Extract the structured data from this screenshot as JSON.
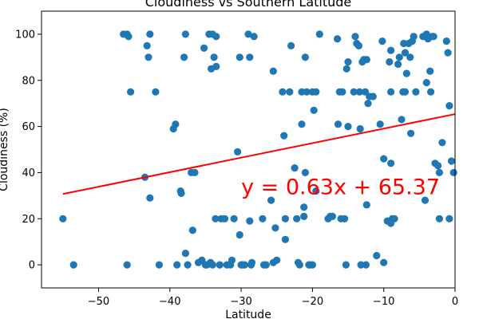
{
  "chart_data": {
    "type": "scatter",
    "title": "Cloudiness vs Southern Latitude",
    "xlabel": "Latitude",
    "ylabel": "Cloudiness (%)",
    "xlim": [
      -58,
      0
    ],
    "ylim": [
      -10,
      110
    ],
    "xticks": [
      -50,
      -40,
      -30,
      -20,
      -10,
      0
    ],
    "yticks": [
      0,
      20,
      40,
      60,
      80,
      100
    ],
    "grid": false,
    "point_color": "#1f77b4",
    "line_color": "#ff0000",
    "equation_color": "#ff0000",
    "regression": {
      "slope": 0.63,
      "intercept": 65.37,
      "x_range": [
        -55,
        0
      ]
    },
    "annotation": "y = 0.63x + 65.37",
    "points": [
      [
        -55,
        20
      ],
      [
        -53.5,
        0
      ],
      [
        -46.5,
        100
      ],
      [
        -46,
        100
      ],
      [
        -45.8,
        99
      ],
      [
        -46,
        0
      ],
      [
        -45.5,
        75
      ],
      [
        -43.5,
        38
      ],
      [
        -43.2,
        95
      ],
      [
        -43,
        90
      ],
      [
        -42.8,
        29
      ],
      [
        -42.8,
        100
      ],
      [
        -42,
        75
      ],
      [
        -41.5,
        0
      ],
      [
        -39.5,
        59
      ],
      [
        -39.2,
        61
      ],
      [
        -39,
        0
      ],
      [
        -38.5,
        32
      ],
      [
        -38.4,
        31
      ],
      [
        -38,
        90
      ],
      [
        -37.8,
        100
      ],
      [
        -37.8,
        5
      ],
      [
        -37.5,
        0
      ],
      [
        -37,
        40
      ],
      [
        -36.8,
        15
      ],
      [
        -36.5,
        40
      ],
      [
        -36,
        1
      ],
      [
        -35.5,
        2
      ],
      [
        -35.2,
        94
      ],
      [
        -35,
        0
      ],
      [
        -34.8,
        0
      ],
      [
        -34.5,
        100
      ],
      [
        -34.3,
        1
      ],
      [
        -34.2,
        85
      ],
      [
        -34,
        100
      ],
      [
        -34,
        0
      ],
      [
        -33.8,
        90
      ],
      [
        -33.6,
        20
      ],
      [
        -33.5,
        86
      ],
      [
        -33.5,
        99
      ],
      [
        -33,
        0
      ],
      [
        -32.8,
        20
      ],
      [
        -32.3,
        20
      ],
      [
        -32,
        0
      ],
      [
        -31.5,
        0
      ],
      [
        -31.3,
        2
      ],
      [
        -31,
        20
      ],
      [
        -30.5,
        49
      ],
      [
        -30.2,
        13
      ],
      [
        -30.2,
        90
      ],
      [
        -30,
        0
      ],
      [
        -29.8,
        0
      ],
      [
        -29.5,
        0
      ],
      [
        -29,
        100
      ],
      [
        -28.8,
        90
      ],
      [
        -28.8,
        19
      ],
      [
        -28.6,
        0
      ],
      [
        -28.5,
        1
      ],
      [
        -28.2,
        99
      ],
      [
        -27,
        20
      ],
      [
        -26.8,
        0
      ],
      [
        -26.5,
        0
      ],
      [
        -25.8,
        28
      ],
      [
        -25.5,
        84
      ],
      [
        -25.5,
        1
      ],
      [
        -25.2,
        16
      ],
      [
        -25,
        2
      ],
      [
        -24.2,
        75
      ],
      [
        -24,
        56
      ],
      [
        -23.8,
        11
      ],
      [
        -23.8,
        20
      ],
      [
        -23.2,
        75
      ],
      [
        -23,
        95
      ],
      [
        -22.5,
        42
      ],
      [
        -22.2,
        20
      ],
      [
        -22,
        1
      ],
      [
        -21.8,
        0
      ],
      [
        -21.5,
        75
      ],
      [
        -21.5,
        61
      ],
      [
        -21.2,
        21
      ],
      [
        -21.2,
        25
      ],
      [
        -21,
        90
      ],
      [
        -21,
        40
      ],
      [
        -20.8,
        75
      ],
      [
        -20.5,
        0
      ],
      [
        -20.3,
        0
      ],
      [
        -20,
        0
      ],
      [
        -20,
        75
      ],
      [
        -19.8,
        67
      ],
      [
        -19.5,
        75
      ],
      [
        -19.5,
        32
      ],
      [
        -19,
        100
      ],
      [
        -17.8,
        20
      ],
      [
        -17.5,
        21
      ],
      [
        -17.2,
        21
      ],
      [
        -16.5,
        98
      ],
      [
        -16.4,
        61
      ],
      [
        -16.2,
        75
      ],
      [
        -16,
        20
      ],
      [
        -15.8,
        75
      ],
      [
        -15.5,
        20
      ],
      [
        -15.3,
        0
      ],
      [
        -15.2,
        85
      ],
      [
        -15,
        88
      ],
      [
        -15,
        60
      ],
      [
        -14.2,
        75
      ],
      [
        -14,
        99
      ],
      [
        -13.8,
        96
      ],
      [
        -13.5,
        95
      ],
      [
        -13.4,
        75
      ],
      [
        -13.3,
        59
      ],
      [
        -13.2,
        0
      ],
      [
        -13,
        88
      ],
      [
        -12.8,
        89
      ],
      [
        -12.6,
        75
      ],
      [
        -12.5,
        0
      ],
      [
        -12.4,
        26
      ],
      [
        -12.4,
        89
      ],
      [
        -12.2,
        70
      ],
      [
        -12,
        73
      ],
      [
        -11.5,
        73
      ],
      [
        -11,
        4
      ],
      [
        -10.5,
        61
      ],
      [
        -10.2,
        97
      ],
      [
        -10,
        46
      ],
      [
        -10,
        1
      ],
      [
        -9.5,
        19
      ],
      [
        -9.2,
        88
      ],
      [
        -9,
        75
      ],
      [
        -9,
        93
      ],
      [
        -9,
        18
      ],
      [
        -9,
        44
      ],
      [
        -8.8,
        20
      ],
      [
        -8.5,
        20
      ],
      [
        -8,
        87
      ],
      [
        -7.8,
        90
      ],
      [
        -7.5,
        63
      ],
      [
        -7.3,
        75
      ],
      [
        -7.2,
        96
      ],
      [
        -7,
        75
      ],
      [
        -7,
        92
      ],
      [
        -6.8,
        83
      ],
      [
        -6.5,
        96
      ],
      [
        -6.3,
        90
      ],
      [
        -6.2,
        57
      ],
      [
        -6,
        97
      ],
      [
        -5.8,
        99
      ],
      [
        -5.5,
        75
      ],
      [
        -4.5,
        99
      ],
      [
        -4.2,
        28
      ],
      [
        -4,
        79
      ],
      [
        -4,
        100
      ],
      [
        -3.8,
        98
      ],
      [
        -3.5,
        84
      ],
      [
        -3.4,
        75
      ],
      [
        -3.2,
        99
      ],
      [
        -3,
        99
      ],
      [
        -2.8,
        44
      ],
      [
        -2.4,
        43
      ],
      [
        -2.2,
        40
      ],
      [
        -2.2,
        20
      ],
      [
        -1.8,
        53
      ],
      [
        -1.2,
        97
      ],
      [
        -1,
        92
      ],
      [
        -0.8,
        69
      ],
      [
        -0.8,
        20
      ],
      [
        -0.5,
        45
      ],
      [
        -0.2,
        40
      ]
    ]
  }
}
